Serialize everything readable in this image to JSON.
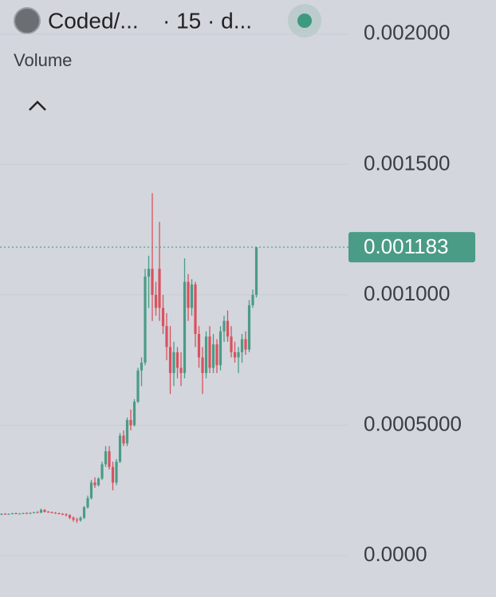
{
  "chart_data": {
    "type": "candlestick",
    "title": "Coded/...",
    "interval_info": "· 15 · d...",
    "pane_label": "Volume",
    "ylim": [
      -0.000159,
      0.002131
    ],
    "yticks": [
      {
        "value": 0.002,
        "label": "0.002000"
      },
      {
        "value": 0.0015,
        "label": "0.001500"
      },
      {
        "value": 0.001,
        "label": "0.001000"
      },
      {
        "value": 0.0005,
        "label": "0.0005000"
      },
      {
        "value": 0,
        "label": "0.0000"
      }
    ],
    "grid": true,
    "up_color": "#4a9c86",
    "down_color": "#d9525e",
    "last_price": {
      "value": 0.001183,
      "label": "0.001183"
    },
    "open": [
      0.000158,
      0.00016,
      0.000158,
      0.00016,
      0.000162,
      0.00016,
      0.000161,
      0.000163,
      0.000162,
      0.000164,
      0.000166,
      0.000165,
      0.000175,
      0.000168,
      0.000166,
      0.000164,
      0.000162,
      0.00016,
      0.000158,
      0.000155,
      0.000145,
      0.000138,
      0.000135,
      0.000145,
      0.000185,
      0.00022,
      0.00028,
      0.00027,
      0.000295,
      0.00035,
      0.0004,
      0.00034,
      0.00028,
      0.00036,
      0.00046,
      0.00043,
      0.00052,
      0.0005,
      0.00059,
      0.00071,
      0.00074,
      0.00107,
      0.0011,
      0.001,
      0.0011,
      0.00095,
      0.00088,
      0.0008,
      0.0007,
      0.00078,
      0.00072,
      0.0007,
      0.00105,
      0.00095,
      0.00104,
      0.00085,
      0.00076,
      0.0007,
      0.00084,
      0.00072,
      0.00081,
      0.00073,
      0.00086,
      0.0009,
      0.00084,
      0.00078,
      0.00076,
      0.00078,
      0.00083,
      0.00079,
      0.00096,
      0.001
    ],
    "high": [
      0.000162,
      0.000163,
      0.000161,
      0.000164,
      0.000165,
      0.000163,
      0.000164,
      0.000166,
      0.000165,
      0.000168,
      0.00017,
      0.00018,
      0.000178,
      0.000171,
      0.000169,
      0.000167,
      0.000165,
      0.000163,
      0.000162,
      0.000158,
      0.00015,
      0.000145,
      0.00015,
      0.00019,
      0.00023,
      0.00029,
      0.0003,
      0.0003,
      0.00036,
      0.00042,
      0.00042,
      0.00036,
      0.00037,
      0.00047,
      0.00048,
      0.00053,
      0.00056,
      0.0006,
      0.00072,
      0.00076,
      0.0011,
      0.00115,
      0.00139,
      0.00105,
      0.00128,
      0.001,
      0.00093,
      0.00088,
      0.00082,
      0.0008,
      0.00078,
      0.00114,
      0.00108,
      0.00106,
      0.00105,
      0.00088,
      0.0008,
      0.00086,
      0.00088,
      0.00085,
      0.00083,
      0.00088,
      0.00092,
      0.00094,
      0.00088,
      0.00082,
      0.0008,
      0.00085,
      0.00086,
      0.00098,
      0.00102,
      0.001183
    ],
    "low": [
      0.000155,
      0.000157,
      0.000156,
      0.000158,
      0.000159,
      0.000158,
      0.000159,
      0.00016,
      0.000159,
      0.000162,
      0.000163,
      0.000162,
      0.000165,
      0.000164,
      0.000162,
      0.00016,
      0.000158,
      0.000155,
      0.00015,
      0.00014,
      0.00013,
      0.000125,
      0.00013,
      0.00014,
      0.00018,
      0.000215,
      0.00026,
      0.000265,
      0.00029,
      0.00034,
      0.00033,
      0.00025,
      0.00027,
      0.000355,
      0.00042,
      0.00042,
      0.00048,
      0.000495,
      0.000585,
      0.00065,
      0.00073,
      0.00095,
      0.0009,
      0.00092,
      0.0009,
      0.00085,
      0.00075,
      0.00062,
      0.00065,
      0.00068,
      0.00065,
      0.00068,
      0.0009,
      0.00092,
      0.0008,
      0.00072,
      0.00062,
      0.00068,
      0.0007,
      0.0007,
      0.0007,
      0.00071,
      0.00082,
      0.00082,
      0.00076,
      0.00074,
      0.0007,
      0.00074,
      0.00077,
      0.00078,
      0.00095,
      0.00099
    ],
    "close": [
      0.00016,
      0.000158,
      0.00016,
      0.000162,
      0.00016,
      0.000161,
      0.000163,
      0.000162,
      0.000164,
      0.000166,
      0.000165,
      0.000175,
      0.000168,
      0.000166,
      0.000164,
      0.000162,
      0.00016,
      0.000158,
      0.000155,
      0.000145,
      0.000138,
      0.000135,
      0.000145,
      0.000185,
      0.00022,
      0.00028,
      0.00027,
      0.000295,
      0.00035,
      0.0004,
      0.00034,
      0.00028,
      0.00036,
      0.00046,
      0.00043,
      0.00052,
      0.0005,
      0.00059,
      0.00071,
      0.00074,
      0.00107,
      0.0011,
      0.001,
      0.00095,
      0.00095,
      0.00088,
      0.0008,
      0.0007,
      0.00078,
      0.00072,
      0.0007,
      0.00105,
      0.00095,
      0.00104,
      0.00085,
      0.00076,
      0.0007,
      0.00084,
      0.00072,
      0.00081,
      0.00073,
      0.00086,
      0.0009,
      0.00084,
      0.00078,
      0.00076,
      0.00078,
      0.00083,
      0.00079,
      0.00096,
      0.001,
      0.001183
    ]
  }
}
